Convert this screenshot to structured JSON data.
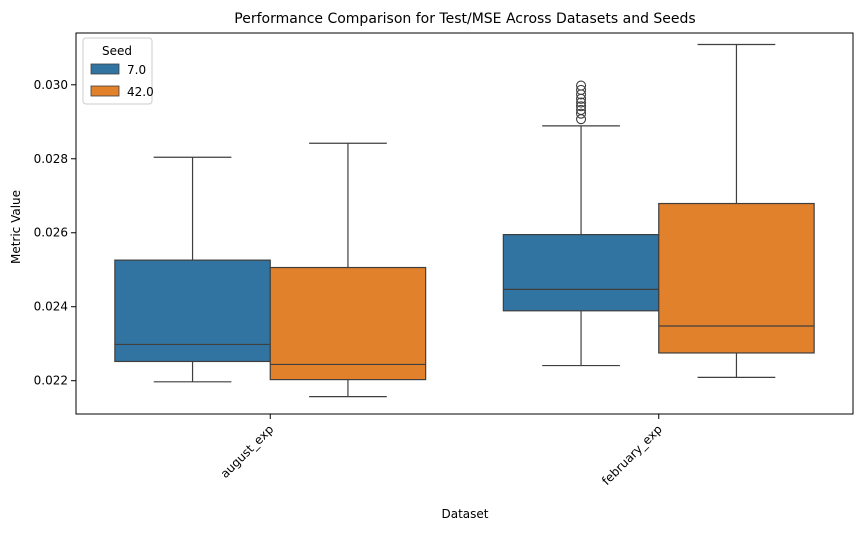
{
  "chart_data": {
    "type": "box",
    "title": "Performance Comparison for Test/MSE Across Datasets and Seeds",
    "xlabel": "Dataset",
    "ylabel": "Metric Value",
    "categories": [
      "august_exp",
      "february_exp"
    ],
    "ylim": [
      0.0211,
      0.0314
    ],
    "yticks": [
      0.022,
      0.024,
      0.026,
      0.028,
      0.03
    ],
    "ytick_labels": [
      "0.022",
      "0.024",
      "0.026",
      "0.028",
      "0.030"
    ],
    "legend": {
      "title": "Seed",
      "position": "top-left"
    },
    "series": [
      {
        "name": "7.0",
        "color": "#3274a1",
        "boxes": [
          {
            "whisker_low": 0.02197,
            "q1": 0.02252,
            "median": 0.02298,
            "q3": 0.02526,
            "whisker_high": 0.02804,
            "outliers": []
          },
          {
            "whisker_low": 0.02241,
            "q1": 0.02389,
            "median": 0.02447,
            "q3": 0.02595,
            "whisker_high": 0.02889,
            "outliers": [
              0.02907,
              0.02922,
              0.02932,
              0.02942,
              0.02952,
              0.02962,
              0.02974,
              0.02986,
              0.02998
            ]
          }
        ]
      },
      {
        "name": "42.0",
        "color": "#e1812c",
        "boxes": [
          {
            "whisker_low": 0.02157,
            "q1": 0.02203,
            "median": 0.02244,
            "q3": 0.02506,
            "whisker_high": 0.02842,
            "outliers": []
          },
          {
            "whisker_low": 0.02209,
            "q1": 0.02275,
            "median": 0.02348,
            "q3": 0.02679,
            "whisker_high": 0.03109,
            "outliers": []
          }
        ]
      }
    ]
  }
}
